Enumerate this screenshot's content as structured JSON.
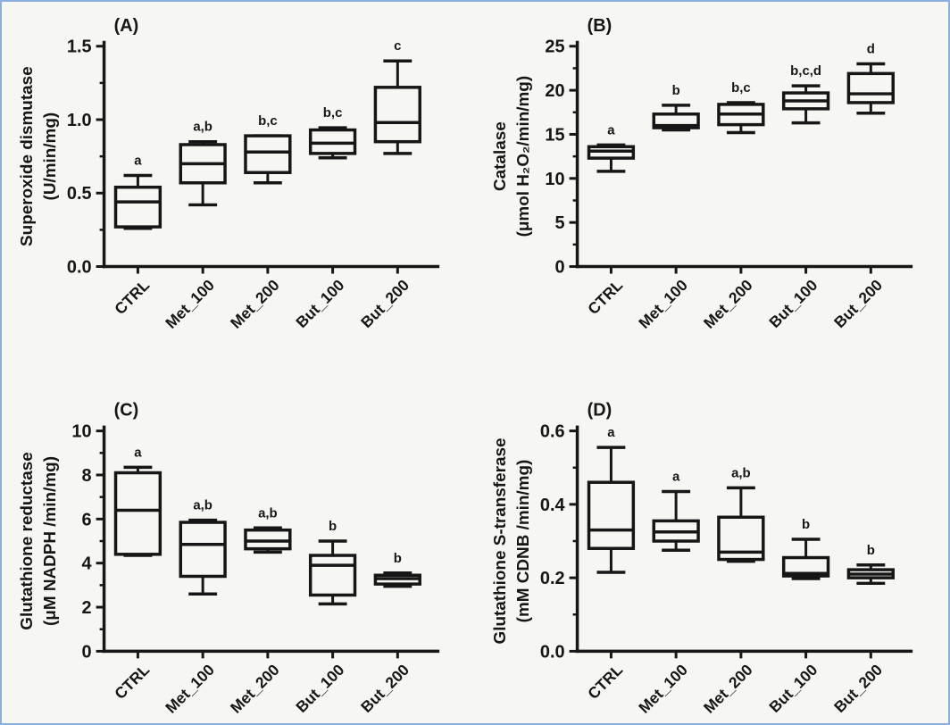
{
  "figure": {
    "background_color": "#f6f6f2",
    "ink_color": "#161616",
    "border_color": "#8aaedd"
  },
  "categories": [
    "CTRL",
    "Met_100",
    "Met_200",
    "But_100",
    "But_200"
  ],
  "chart_data": [
    {
      "type": "box",
      "panel_label": "(A)",
      "ylabel_line1": "Superoxide dismutase",
      "ylabel_line2": "(U/min/mg)",
      "ylim": [
        0,
        1.5
      ],
      "yticks": [
        "0.0",
        "0.5",
        "1.0",
        "1.5"
      ],
      "minor_tick_step": 0.25,
      "grid": false,
      "legend": "none",
      "boxes": [
        {
          "category": "CTRL",
          "letters": "a",
          "min": 0.26,
          "q1": 0.27,
          "median": 0.44,
          "q3": 0.54,
          "max": 0.62
        },
        {
          "category": "Met_100",
          "letters": "a,b",
          "min": 0.42,
          "q1": 0.57,
          "median": 0.7,
          "q3": 0.83,
          "max": 0.85
        },
        {
          "category": "Met_200",
          "letters": "b,c",
          "min": 0.57,
          "q1": 0.64,
          "median": 0.78,
          "q3": 0.89,
          "max": 0.89
        },
        {
          "category": "But_100",
          "letters": "b,c",
          "min": 0.74,
          "q1": 0.77,
          "median": 0.84,
          "q3": 0.93,
          "max": 0.945
        },
        {
          "category": "But_200",
          "letters": "c",
          "min": 0.77,
          "q1": 0.85,
          "median": 0.98,
          "q3": 1.22,
          "max": 1.4
        }
      ]
    },
    {
      "type": "box",
      "panel_label": "(B)",
      "ylabel_line1": "Catalase",
      "ylabel_line2": "(μmol H₂O₂/min/mg)",
      "ylim": [
        0,
        25
      ],
      "yticks": [
        "0",
        "5",
        "10",
        "15",
        "20",
        "25"
      ],
      "minor_tick_step": 2.5,
      "grid": false,
      "legend": "none",
      "boxes": [
        {
          "category": "CTRL",
          "letters": "a",
          "min": 10.8,
          "q1": 12.3,
          "median": 13.1,
          "q3": 13.6,
          "max": 13.8
        },
        {
          "category": "Met_100",
          "letters": "b",
          "min": 15.5,
          "q1": 15.75,
          "median": 16.0,
          "q3": 17.3,
          "max": 18.3
        },
        {
          "category": "Met_200",
          "letters": "b,c",
          "min": 15.2,
          "q1": 16.1,
          "median": 17.3,
          "q3": 18.4,
          "max": 18.6
        },
        {
          "category": "But_100",
          "letters": "b,c,d",
          "min": 16.3,
          "q1": 17.9,
          "median": 18.8,
          "q3": 19.7,
          "max": 20.5
        },
        {
          "category": "But_200",
          "letters": "d",
          "min": 17.4,
          "q1": 18.6,
          "median": 19.6,
          "q3": 21.9,
          "max": 23.0
        }
      ]
    },
    {
      "type": "box",
      "panel_label": "(C)",
      "ylabel_line1": "Glutathione reductase",
      "ylabel_line2": "(μM NADPH /min/mg)",
      "ylim": [
        0,
        10
      ],
      "yticks": [
        "0",
        "2",
        "4",
        "6",
        "8",
        "10"
      ],
      "minor_tick_step": 1,
      "grid": false,
      "legend": "none",
      "boxes": [
        {
          "category": "CTRL",
          "letters": "a",
          "min": 4.35,
          "q1": 4.4,
          "median": 6.4,
          "q3": 8.1,
          "max": 8.35
        },
        {
          "category": "Met_100",
          "letters": "a,b",
          "min": 2.6,
          "q1": 3.4,
          "median": 4.85,
          "q3": 5.85,
          "max": 5.95
        },
        {
          "category": "Met_200",
          "letters": "a,b",
          "min": 4.5,
          "q1": 4.65,
          "median": 5.0,
          "q3": 5.5,
          "max": 5.6
        },
        {
          "category": "But_100",
          "letters": "b",
          "min": 2.15,
          "q1": 2.55,
          "median": 3.9,
          "q3": 4.35,
          "max": 5.0
        },
        {
          "category": "But_200",
          "letters": "b",
          "min": 2.95,
          "q1": 3.05,
          "median": 3.3,
          "q3": 3.45,
          "max": 3.55
        }
      ]
    },
    {
      "type": "box",
      "panel_label": "(D)",
      "ylabel_line1": "Glutathione S-transferase",
      "ylabel_line2": "(mM CDNB /min/mg)",
      "ylim": [
        0,
        0.6
      ],
      "yticks": [
        "0.0",
        "0.2",
        "0.4",
        "0.6"
      ],
      "minor_tick_step": 0.1,
      "grid": false,
      "legend": "none",
      "boxes": [
        {
          "category": "CTRL",
          "letters": "a",
          "min": 0.215,
          "q1": 0.28,
          "median": 0.33,
          "q3": 0.46,
          "max": 0.555
        },
        {
          "category": "Met_100",
          "letters": "a",
          "min": 0.275,
          "q1": 0.3,
          "median": 0.325,
          "q3": 0.355,
          "max": 0.435
        },
        {
          "category": "Met_200",
          "letters": "a,b",
          "min": 0.245,
          "q1": 0.25,
          "median": 0.27,
          "q3": 0.365,
          "max": 0.445
        },
        {
          "category": "But_100",
          "letters": "b",
          "min": 0.198,
          "q1": 0.205,
          "median": 0.212,
          "q3": 0.255,
          "max": 0.305
        },
        {
          "category": "But_200",
          "letters": "b",
          "min": 0.185,
          "q1": 0.2,
          "median": 0.21,
          "q3": 0.222,
          "max": 0.235
        }
      ]
    }
  ]
}
